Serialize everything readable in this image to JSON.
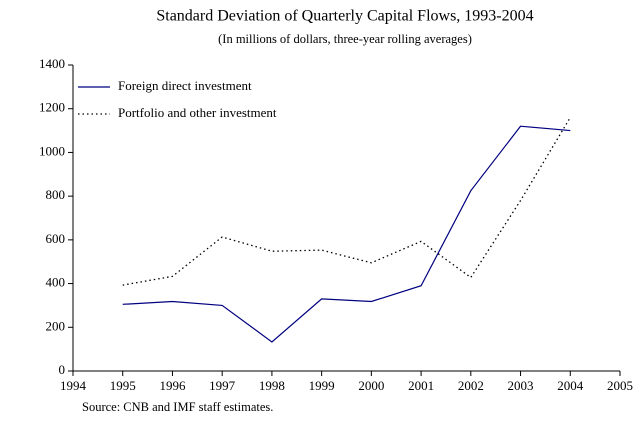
{
  "chart_data": {
    "type": "line",
    "title": "Standard Deviation of Quarterly Capital Flows, 1993-2004",
    "subtitle": "(In millions of dollars, three-year rolling averages)",
    "source": "Source: CNB and IMF staff estimates.",
    "x": [
      1995,
      1996,
      1997,
      1998,
      1999,
      2000,
      2001,
      2002,
      2003,
      2004
    ],
    "xlim": [
      1994,
      2005
    ],
    "xticks": [
      1994,
      1995,
      1996,
      1997,
      1998,
      1999,
      2000,
      2001,
      2002,
      2003,
      2004,
      2005
    ],
    "ylim": [
      0,
      1400
    ],
    "yticks": [
      0,
      200,
      400,
      600,
      800,
      1000,
      1200,
      1400
    ],
    "grid": false,
    "legend": "top-left",
    "series": [
      {
        "name": "Foreign direct investment",
        "color": "#000080",
        "dash": "solid",
        "values": [
          305,
          318,
          300,
          133,
          330,
          318,
          390,
          825,
          1120,
          1100
        ]
      },
      {
        "name": "Portfolio and other investment",
        "color": "#000000",
        "dash": "dotted",
        "values": [
          393,
          433,
          613,
          548,
          553,
          495,
          593,
          428,
          780,
          1160
        ]
      }
    ]
  }
}
